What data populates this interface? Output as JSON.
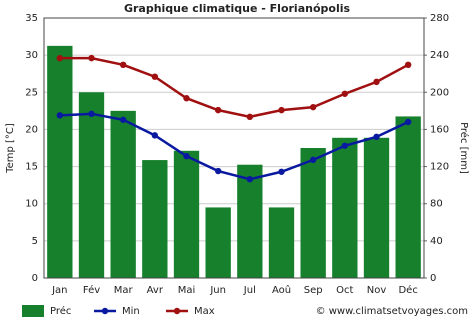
{
  "chart_data": {
    "type": "combo",
    "title": "Graphique climatique - Florianópolis",
    "y_label": "Temp [°C]",
    "y2_label": "Préc [mm]",
    "categories": [
      "Jan",
      "Fév",
      "Mar",
      "Avr",
      "Mai",
      "Jun",
      "Jul",
      "Aoû",
      "Sep",
      "Oct",
      "Nov",
      "Déc"
    ],
    "series": [
      {
        "name": "Préc",
        "kind": "bar",
        "axis": "y2",
        "color": "#16802c",
        "values": [
          250,
          200,
          180,
          127,
          137,
          76,
          122,
          76,
          140,
          151,
          151,
          174
        ]
      },
      {
        "name": "Min",
        "kind": "line",
        "color": "#0a1aa0",
        "values": [
          21.9,
          22.1,
          21.3,
          19.2,
          16.4,
          14.4,
          13.3,
          14.3,
          15.9,
          17.8,
          19.0,
          21.0
        ]
      },
      {
        "name": "Max",
        "kind": "line",
        "color": "#a01010",
        "values": [
          29.6,
          29.6,
          28.7,
          27.1,
          24.2,
          22.6,
          21.7,
          22.6,
          23.0,
          24.8,
          26.4,
          28.7
        ]
      }
    ],
    "ylim": [
      0,
      35
    ],
    "yticks": [
      0,
      5,
      10,
      15,
      20,
      25,
      30,
      35
    ],
    "y2lim": [
      0,
      280
    ],
    "y2ticks": [
      0,
      40,
      80,
      120,
      160,
      200,
      240,
      280
    ],
    "grid": true,
    "legend": "bottom",
    "credit": "© www.climatsetvoyages.com"
  }
}
